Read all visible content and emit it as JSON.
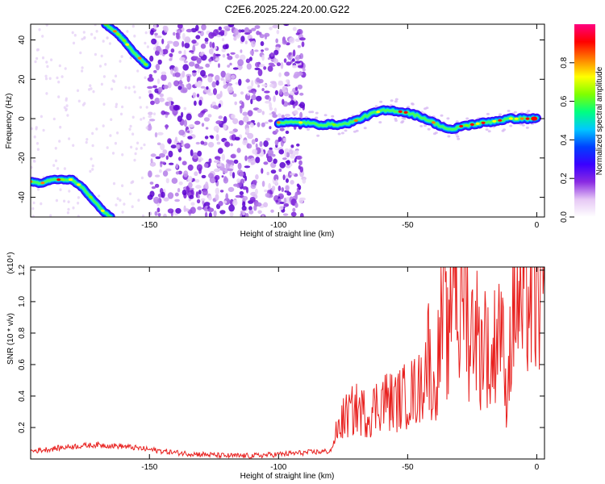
{
  "title": "C2E6.2025.224.20.00.G22",
  "chart_data": [
    {
      "type": "heatmap",
      "xlabel": "Height of straight line (km)",
      "ylabel": "Frequency (Hz)",
      "xlim": [
        -196,
        3
      ],
      "ylim": [
        -50,
        48
      ],
      "xticks": [
        "-150",
        "-100",
        "-50",
        "0"
      ],
      "yticks": [
        "-40",
        "-20",
        "0",
        "20",
        "40"
      ],
      "colorbar": {
        "label": "Normalized spectral amplitude",
        "range": [
          0,
          1
        ],
        "ticks": [
          "0.0",
          "0.2",
          "0.4",
          "0.6",
          "0.8"
        ],
        "colors": [
          "#ffffff",
          "#e6c8f5",
          "#8a2be2",
          "#3a00ff",
          "#0040ff",
          "#00c8ff",
          "#00ff80",
          "#80ff00",
          "#ffff00",
          "#ff8000",
          "#ff0000",
          "#ff0080"
        ]
      },
      "features": {
        "main_trace": {
          "x": [
            -100,
            -95,
            -90,
            -85,
            -80,
            -75,
            -70,
            -65,
            -60,
            -55,
            -50,
            -45,
            -40,
            -35,
            -32,
            -30,
            -25,
            -20,
            -15,
            -10,
            -5,
            0
          ],
          "y": [
            -2,
            -2,
            -2,
            -3,
            -3,
            -3,
            -1,
            2,
            4,
            4,
            3,
            1,
            -2,
            -5,
            -6,
            -4,
            -3,
            -2,
            -1,
            0,
            0,
            0
          ]
        },
        "upper_left_trace": {
          "x": [
            -167,
            -163,
            -160,
            -157,
            -154,
            -151
          ],
          "y": [
            48,
            44,
            40,
            35,
            31,
            27
          ]
        },
        "lower_left_trace": {
          "x": [
            -196,
            -192,
            -188,
            -184,
            -180,
            -176,
            -172,
            -168,
            -165
          ],
          "y": [
            -32,
            -33,
            -31,
            -31,
            -31,
            -35,
            -41,
            -47,
            -50
          ]
        },
        "scatter_region_km": [
          -150,
          -90
        ]
      }
    },
    {
      "type": "line",
      "xlabel": "Height of straight line (km)",
      "ylabel": "SNR (10 * v/v)",
      "scale_note": "(x10⁴)",
      "xlim": [
        -196,
        3
      ],
      "ylim": [
        0,
        1.22
      ],
      "xticks": [
        "-150",
        "-100",
        "-50",
        "0"
      ],
      "yticks": [
        "0.2",
        "0.4",
        "0.6",
        "0.8",
        "1.0",
        "1.2"
      ],
      "color": "#e8201e",
      "series": [
        {
          "x": [
            -196,
            -190,
            -180,
            -170,
            -160,
            -150,
            -140,
            -130,
            -120,
            -110,
            -100,
            -90,
            -80,
            -78,
            -75,
            -70,
            -65,
            -60,
            -55,
            -50,
            -45,
            -42,
            -40,
            -36,
            -34,
            -32,
            -30,
            -28,
            -26,
            -24,
            -22,
            -20,
            -18,
            -16,
            -14,
            -12,
            -10,
            -8,
            -6,
            -4,
            -2,
            0,
            3
          ],
          "y": [
            0.05,
            0.06,
            0.08,
            0.09,
            0.08,
            0.06,
            0.04,
            0.03,
            0.02,
            0.02,
            0.03,
            0.04,
            0.05,
            0.12,
            0.2,
            0.25,
            0.22,
            0.3,
            0.28,
            0.32,
            0.35,
            0.55,
            0.3,
            0.75,
            0.5,
            1.2,
            0.6,
            1.0,
            0.55,
            0.75,
            0.5,
            0.65,
            0.4,
            0.6,
            0.75,
            0.3,
            0.6,
            0.8,
            0.7,
            0.85,
            0.75,
            0.8,
            0.95
          ]
        }
      ]
    }
  ]
}
